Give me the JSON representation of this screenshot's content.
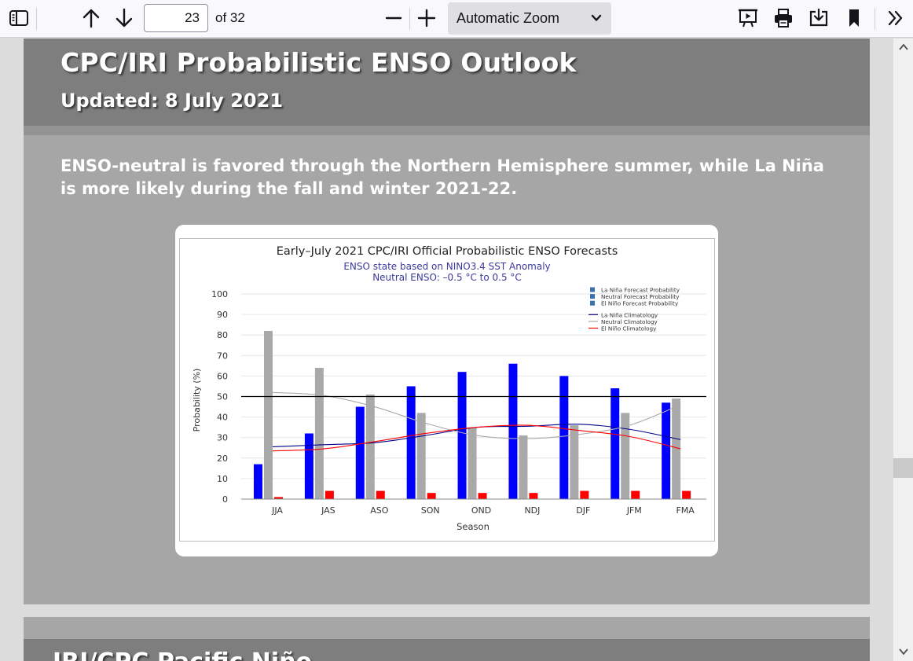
{
  "toolbar": {
    "sidebar_icon": "sidebar-toggle-icon",
    "prev_icon": "arrow-up-icon",
    "next_icon": "arrow-down-icon",
    "page_number": "23",
    "page_count": "of 32",
    "zoom_out_icon": "minus-icon",
    "zoom_in_icon": "plus-icon",
    "zoom_value": "Automatic Zoom",
    "presentation_icon": "presentation-icon",
    "print_icon": "print-icon",
    "save_icon": "download-icon",
    "bookmark_icon": "bookmark-icon",
    "tools_icon": "double-chevron-icon"
  },
  "page": {
    "title": "CPC/IRI Probabilistic ENSO Outlook",
    "updated": "Updated:  8 July 2021",
    "summary": "ENSO-neutral is favored through the Northern Hemisphere summer, while La Niña is more likely during the fall and winter 2021-22.",
    "next_page_title": "IRI/CPC Pacific Niño"
  },
  "colors": {
    "la_nina": "#0000ff",
    "neutral": "#a9a9a9",
    "el_nino": "#ff0000",
    "slide_bg": "#a6a6a6",
    "slide_head": "#7e7e7e"
  },
  "chart_data": {
    "type": "bar",
    "title": "Early–July 2021 CPC/IRI Official Probabilistic ENSO Forecasts",
    "subtitle_lines": [
      "ENSO state based on NINO3.4 SST Anomaly",
      "Neutral ENSO: –0.5 °C to 0.5 °C"
    ],
    "xlabel": "Season",
    "ylabel": "Probability (%)",
    "ylim": [
      0,
      100
    ],
    "yticks": [
      0,
      10,
      20,
      30,
      40,
      50,
      60,
      70,
      80,
      90,
      100
    ],
    "categories": [
      "JJA",
      "JAS",
      "ASO",
      "SON",
      "OND",
      "NDJ",
      "DJF",
      "JFM",
      "FMA"
    ],
    "series": [
      {
        "name": "La Niña Forecast Probability",
        "kind": "bar",
        "color": "#0000ff",
        "values": [
          17,
          32,
          45,
          55,
          62,
          66,
          60,
          54,
          47
        ]
      },
      {
        "name": "Neutral Forecast Probability",
        "kind": "bar",
        "color": "#a9a9a9",
        "values": [
          82,
          64,
          51,
          42,
          35,
          31,
          36,
          42,
          49
        ]
      },
      {
        "name": "El Niño Forecast Probability",
        "kind": "bar",
        "color": "#ff0000",
        "values": [
          1,
          4,
          4,
          3,
          3,
          3,
          4,
          4,
          4
        ]
      },
      {
        "name": "La Niña Climatology",
        "kind": "line",
        "color": "#00008b",
        "values": [
          25.5,
          26.5,
          27.5,
          31,
          35,
          35.5,
          36.5,
          34,
          29
        ]
      },
      {
        "name": "Neutral Climatology",
        "kind": "line",
        "color": "#a9a9a9",
        "values": [
          52,
          50.5,
          45,
          37,
          31,
          29.5,
          31.5,
          36,
          46
        ]
      },
      {
        "name": "El Niño Climatology",
        "kind": "line",
        "color": "#ff0000",
        "values": [
          23.5,
          24.5,
          28,
          32,
          35,
          36,
          33.5,
          30.5,
          24.5
        ]
      }
    ],
    "reference_line": 50,
    "legend_position": "top-right"
  }
}
